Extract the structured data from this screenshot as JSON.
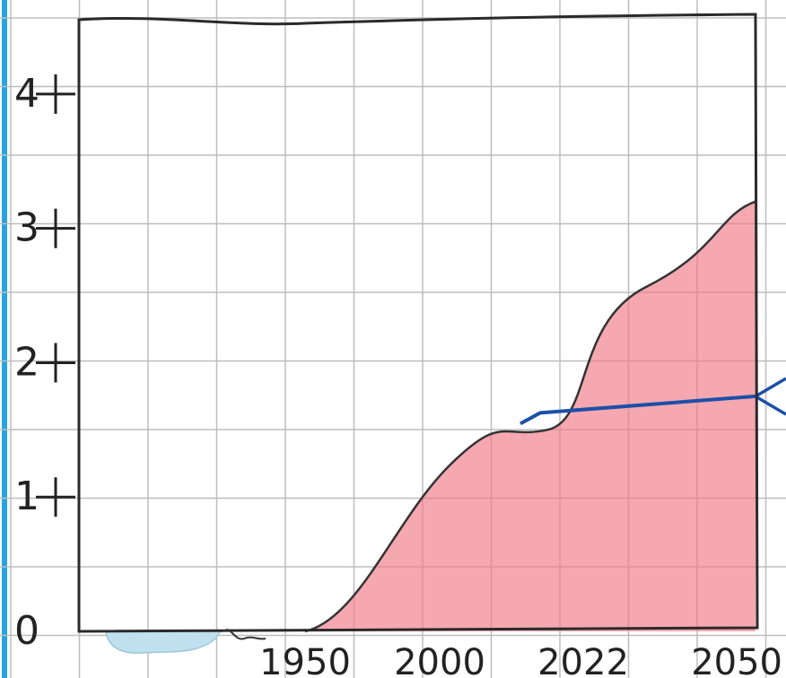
{
  "chart_data": {
    "type": "area",
    "title": "",
    "xlabel": "",
    "ylabel": "",
    "x_ticks": [
      "1950",
      "2000",
      "2022",
      "2050"
    ],
    "y_ticks": [
      "0",
      "1",
      "2",
      "3",
      "4"
    ],
    "ylim": [
      0,
      4.5
    ],
    "grid": true,
    "area_color": "#f07a86",
    "below_zero_color": "#bfe0ee",
    "line_color": "#1d4fa8",
    "series": [
      {
        "values": [
          {
            "x": "1950",
            "y": 0.0
          },
          {
            "x": "2000",
            "y": 0.8
          },
          {
            "x": "2022",
            "y": 1.7
          },
          {
            "x": "2050",
            "y": 3.2
          }
        ]
      }
    ],
    "reference_line": {
      "from": "2022",
      "to": "2050",
      "y_start": 1.6,
      "y_end": 1.75
    }
  }
}
